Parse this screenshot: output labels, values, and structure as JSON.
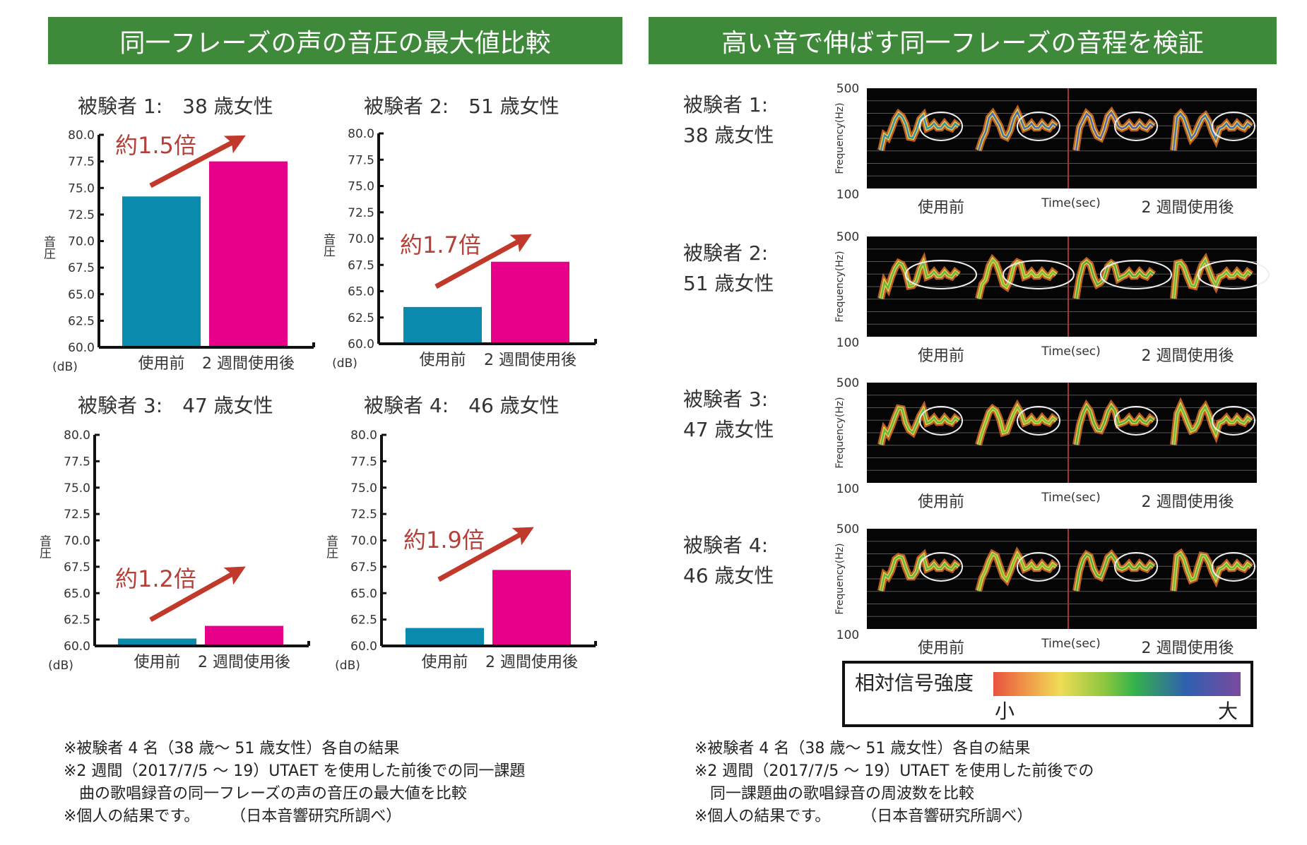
{
  "left_header": "同一フレーズの声の音圧の最大値比較",
  "right_header": "高い音で伸ばす同一フレーズの音程を検証",
  "chart_data": [
    {
      "type": "bar",
      "title": "被験者 1:　38 歳女性",
      "categories": [
        "使用前",
        "2 週間使用後"
      ],
      "values": [
        74.2,
        77.5
      ],
      "ylabel": "音圧",
      "yunit": "(dB)",
      "ylim": [
        60,
        80
      ],
      "yticks": [
        "60.0",
        "62.5",
        "65.0",
        "67.5",
        "70.0",
        "72.5",
        "75.0",
        "77.5",
        "80.0"
      ],
      "annotation": "約1.5倍",
      "colors": [
        "#0a8aad",
        "#e6008a"
      ]
    },
    {
      "type": "bar",
      "title": "被験者 2:　51 歳女性",
      "categories": [
        "使用前",
        "2 週間使用後"
      ],
      "values": [
        63.5,
        67.8
      ],
      "ylabel": "音圧",
      "yunit": "(dB)",
      "ylim": [
        60,
        80
      ],
      "yticks": [
        "60.0",
        "62.5",
        "65.0",
        "67.5",
        "70.0",
        "72.5",
        "75.0",
        "77.5",
        "80.0"
      ],
      "annotation": "約1.7倍",
      "colors": [
        "#0a8aad",
        "#e6008a"
      ]
    },
    {
      "type": "bar",
      "title": "被験者 3:　47 歳女性",
      "categories": [
        "使用前",
        "2 週間使用後"
      ],
      "values": [
        60.7,
        61.9
      ],
      "ylabel": "音圧",
      "yunit": "(dB)",
      "ylim": [
        60,
        80
      ],
      "yticks": [
        "60.0",
        "62.5",
        "65.0",
        "67.5",
        "70.0",
        "72.5",
        "75.0",
        "77.5",
        "80.0"
      ],
      "annotation": "約1.2倍",
      "colors": [
        "#0a8aad",
        "#e6008a"
      ]
    },
    {
      "type": "bar",
      "title": "被験者 4:　46 歳女性",
      "categories": [
        "使用前",
        "2 週間使用後"
      ],
      "values": [
        61.7,
        67.2
      ],
      "ylabel": "音圧",
      "yunit": "(dB)",
      "ylim": [
        60,
        80
      ],
      "yticks": [
        "60.0",
        "62.5",
        "65.0",
        "67.5",
        "70.0",
        "72.5",
        "75.0",
        "77.5",
        "80.0"
      ],
      "annotation": "約1.9倍",
      "colors": [
        "#0a8aad",
        "#e6008a"
      ]
    }
  ],
  "spectrograms": [
    {
      "subject": "被験者 1:",
      "profile": "38 歳女性"
    },
    {
      "subject": "被験者 2:",
      "profile": "51 歳女性"
    },
    {
      "subject": "被験者 3:",
      "profile": "47 歳女性"
    },
    {
      "subject": "被験者 4:",
      "profile": "46 歳女性"
    }
  ],
  "spectrogram_axes": {
    "y_top": "500",
    "y_bottom": "100",
    "ylabel": "Frequency(Hz)",
    "xlabel": "Time(sec)",
    "before": "使用前",
    "after": "2 週間使用後"
  },
  "legend": {
    "title": "相対信号強度",
    "low": "小",
    "high": "大"
  },
  "left_notes": [
    "※被験者 4 名（38 歳～ 51 歳女性）各自の結果",
    "※2 週間（2017/7/5 ～ 19）UTAET を使用した前後での同一課題",
    "　曲の歌唱録音の同一フレーズの声の音圧の最大値を比較",
    "※個人の結果です。　　　（日本音響研究所調べ）"
  ],
  "right_notes": [
    "※被験者 4 名（38 歳～ 51 歳女性）各自の結果",
    "※2 週間（2017/7/5 ～ 19）UTAET を使用した前後での",
    "　同一課題曲の歌唱録音の周波数を比較",
    "※個人の結果です。　　　（日本音響研究所調べ）"
  ]
}
